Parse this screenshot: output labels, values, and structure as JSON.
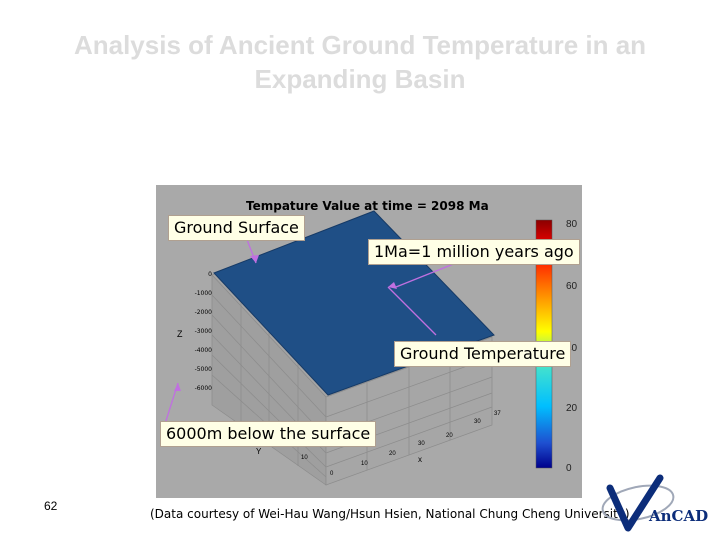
{
  "slide": {
    "title_line1": "Analysis of Ancient Ground Temperature in an",
    "title_line2": "Expanding Basin",
    "page_number": "62",
    "credit": "(Data courtesy of Wei-Hau Wang/Hsun Hsien, National Chung Cheng University)"
  },
  "plot": {
    "title": "Tempature Value at time = 2098 Ma",
    "z_axis_label": "Z",
    "y_axis_label": "Y",
    "x_axis_label": "x",
    "z_ticks": [
      "0",
      "-1000",
      "-2000",
      "-3000",
      "-4000",
      "-5000",
      "-6000"
    ],
    "x_ticks": [
      "0",
      "10",
      "20",
      "30"
    ],
    "y_ticks": [
      "10",
      "20",
      "30",
      "37"
    ],
    "colorbar_ticks": [
      "80",
      "60",
      "40",
      "20",
      "0"
    ]
  },
  "callouts": {
    "ground_surface": "Ground Surface",
    "ma_definition": "1Ma=1 million years ago",
    "ground_temperature": "Ground Temperature",
    "below_surface": "6000m below the surface"
  },
  "logo": {
    "text": "AnCAD"
  },
  "colors": {
    "surface": "#1f4f86",
    "plot_bg": "#a9a9a9",
    "callout_bg": "#ffffe6",
    "arrow": "#c070e0",
    "logo": "#0c2d7a"
  }
}
